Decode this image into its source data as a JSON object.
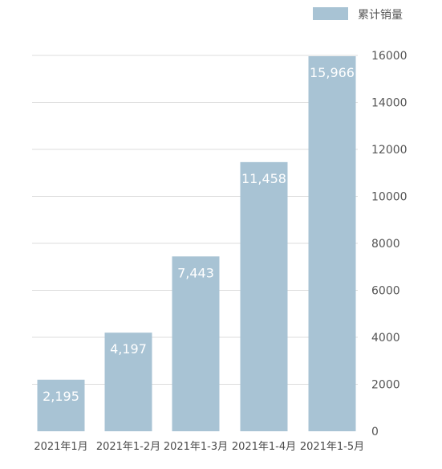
{
  "colors": {
    "bar": "#a8c3d4",
    "grid": "#dcdcdc",
    "text": "#555555"
  },
  "chart_data": {
    "type": "bar",
    "categories": [
      "2021年1月",
      "2021年1-2月",
      "2021年1-3月",
      "2021年1-4月",
      "2021年1-5月"
    ],
    "series": [
      {
        "name": "累计销量",
        "values": [
          2195,
          4197,
          7443,
          11458,
          15966
        ],
        "labels": [
          "2,195",
          "4,197",
          "7,443",
          "11,458",
          "15,966"
        ]
      }
    ],
    "ylim": [
      0,
      16000
    ],
    "yticks": [
      0,
      2000,
      4000,
      6000,
      8000,
      10000,
      12000,
      14000,
      16000
    ],
    "ytick_labels": [
      "0",
      "2000",
      "4000",
      "6000",
      "8000",
      "10000",
      "12000",
      "14000",
      "16000"
    ],
    "y_axis_side": "right",
    "grid": true,
    "legend": "top-right"
  }
}
